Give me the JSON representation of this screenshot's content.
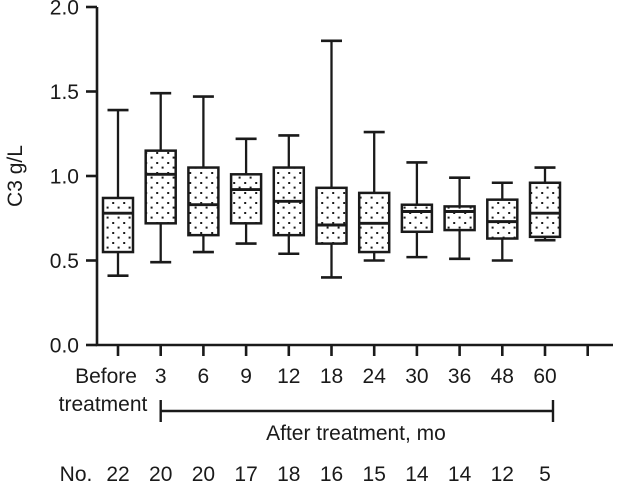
{
  "chart_data": {
    "type": "box",
    "title": "",
    "ylabel": "C3 g/L",
    "xlabel": "",
    "ylim": [
      0.0,
      2.0
    ],
    "grid": false,
    "y_tick_labels": [
      "0.0",
      "0.5",
      "1.0",
      "1.5",
      "2.0"
    ],
    "categories": [
      "Before treatment",
      "3",
      "6",
      "9",
      "12",
      "18",
      "24",
      "30",
      "36",
      "48",
      "60"
    ],
    "after_treatment_label": "After treatment, mo",
    "counts_label": "No.",
    "counts": [
      22,
      20,
      20,
      17,
      18,
      16,
      15,
      14,
      14,
      12,
      5
    ],
    "boxes": [
      {
        "category": "Before treatment",
        "whisker_low": 0.41,
        "q1": 0.55,
        "median": 0.78,
        "q3": 0.87,
        "whisker_high": 1.39
      },
      {
        "category": "3",
        "whisker_low": 0.49,
        "q1": 0.72,
        "median": 1.01,
        "q3": 1.15,
        "whisker_high": 1.49
      },
      {
        "category": "6",
        "whisker_low": 0.55,
        "q1": 0.65,
        "median": 0.83,
        "q3": 1.05,
        "whisker_high": 1.47
      },
      {
        "category": "9",
        "whisker_low": 0.6,
        "q1": 0.72,
        "median": 0.92,
        "q3": 1.01,
        "whisker_high": 1.22
      },
      {
        "category": "12",
        "whisker_low": 0.54,
        "q1": 0.65,
        "median": 0.85,
        "q3": 1.05,
        "whisker_high": 1.24
      },
      {
        "category": "18",
        "whisker_low": 0.4,
        "q1": 0.6,
        "median": 0.71,
        "q3": 0.93,
        "whisker_high": 1.8
      },
      {
        "category": "24",
        "whisker_low": 0.5,
        "q1": 0.55,
        "median": 0.72,
        "q3": 0.9,
        "whisker_high": 1.26
      },
      {
        "category": "30",
        "whisker_low": 0.52,
        "q1": 0.67,
        "median": 0.79,
        "q3": 0.83,
        "whisker_high": 1.08
      },
      {
        "category": "36",
        "whisker_low": 0.51,
        "q1": 0.68,
        "median": 0.79,
        "q3": 0.82,
        "whisker_high": 0.99
      },
      {
        "category": "48",
        "whisker_low": 0.5,
        "q1": 0.63,
        "median": 0.73,
        "q3": 0.86,
        "whisker_high": 0.96
      },
      {
        "category": "60",
        "whisker_low": 0.62,
        "q1": 0.64,
        "median": 0.78,
        "q3": 0.96,
        "whisker_high": 1.05
      }
    ],
    "colors": {
      "stroke": "#1a1a1a",
      "box_fill": "#ffffff",
      "dot_fill": "#1a1a1a"
    },
    "legend": null
  }
}
